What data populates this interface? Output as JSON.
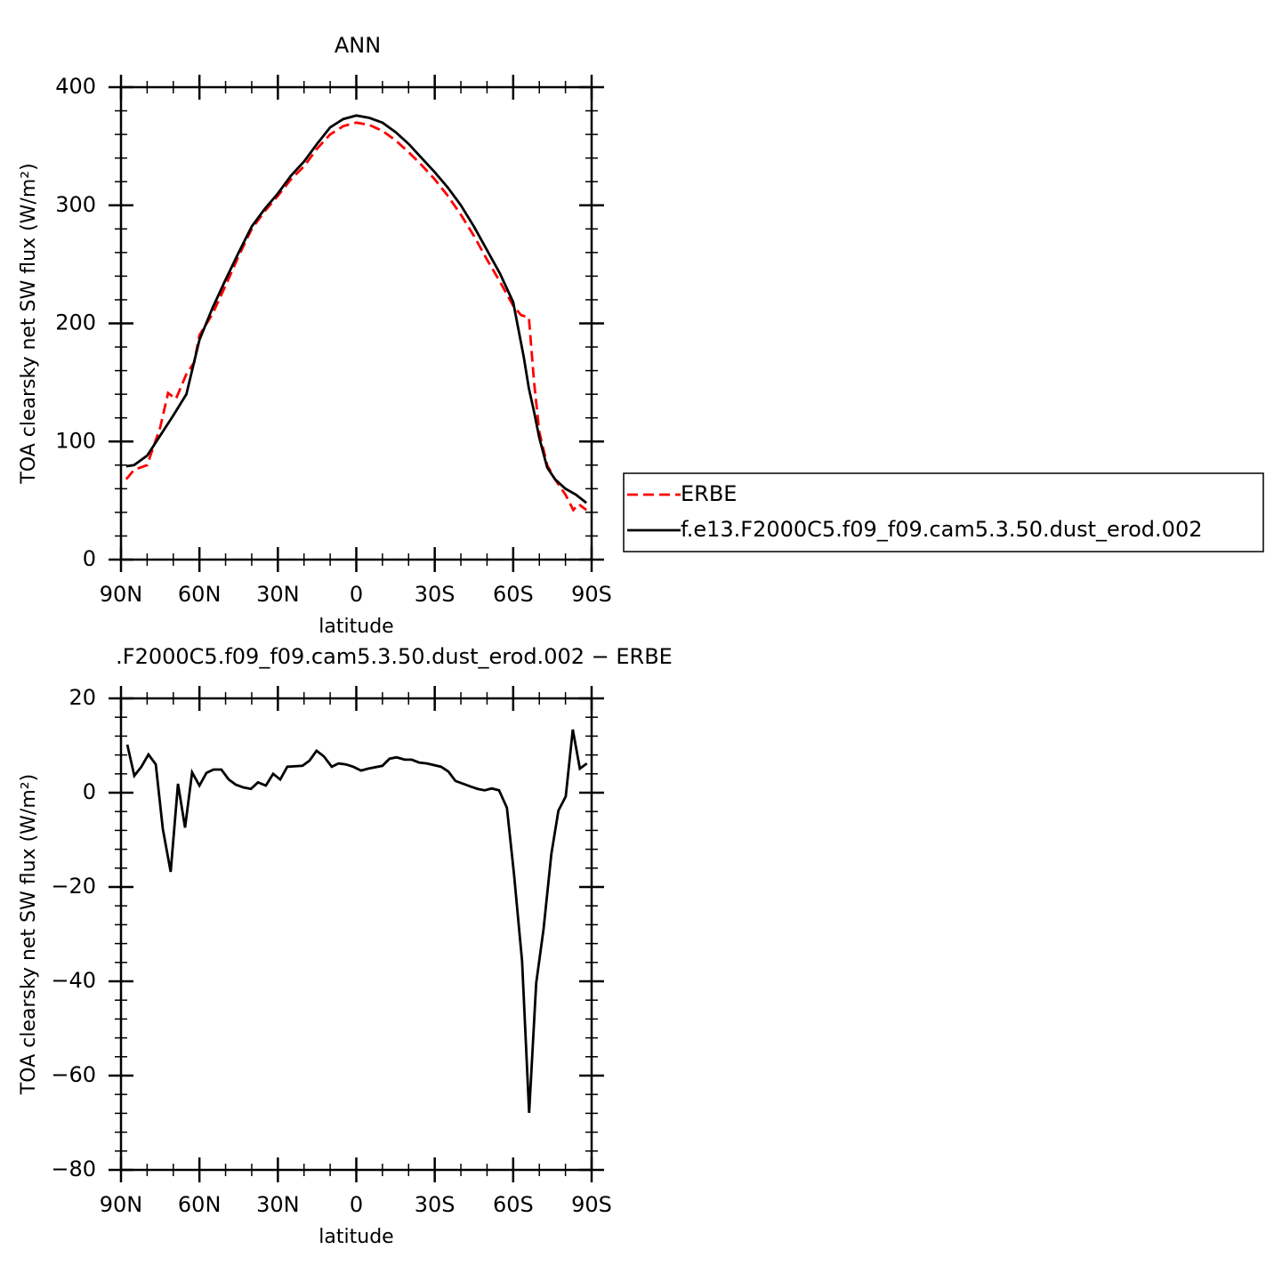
{
  "chart_data": [
    {
      "type": "line",
      "title": "ANN",
      "xlabel": "latitude",
      "ylabel": "TOA clearsky net SW flux (W/m²)",
      "xlim": [
        90,
        -90
      ],
      "ylim": [
        0,
        400
      ],
      "xticks": [
        {
          "value": 90,
          "label": "90N"
        },
        {
          "value": 60,
          "label": "60N"
        },
        {
          "value": 30,
          "label": "30N"
        },
        0,
        {
          "value": -30,
          "label": "30S"
        },
        {
          "value": -60,
          "label": "60S"
        },
        {
          "value": -90,
          "label": "90S"
        }
      ],
      "yticks": [
        0,
        100,
        200,
        300,
        400
      ],
      "legend": "right",
      "series": [
        {
          "name": "ERBE",
          "color": "#ff0000",
          "style": "dashed",
          "x": [
            88,
            85,
            80,
            75,
            72,
            69,
            65,
            62,
            60,
            55,
            50,
            45,
            40,
            35,
            30,
            25,
            20,
            15,
            10,
            5,
            0,
            -5,
            -10,
            -15,
            -20,
            -25,
            -30,
            -35,
            -40,
            -45,
            -50,
            -55,
            -60,
            -63,
            -66,
            -68,
            -70,
            -73,
            -76,
            -80,
            -83,
            -85,
            -88
          ],
          "values": [
            68,
            76,
            80,
            112,
            141,
            136,
            157,
            167,
            190,
            208,
            232,
            257,
            280,
            295,
            308,
            322,
            333,
            348,
            360,
            367,
            370,
            368,
            363,
            355,
            345,
            334,
            322,
            308,
            292,
            274,
            254,
            235,
            215,
            207,
            205,
            150,
            108,
            80,
            68,
            55,
            42,
            47,
            42
          ]
        },
        {
          "name": "f.e13.F2000C5.f09_f09.cam5.3.50.dust_erod.002",
          "color": "#000000",
          "style": "solid",
          "x": [
            88,
            85,
            80,
            75,
            70,
            65,
            60,
            55,
            50,
            45,
            40,
            35,
            30,
            25,
            20,
            15,
            10,
            5,
            0,
            -5,
            -10,
            -15,
            -20,
            -25,
            -30,
            -35,
            -40,
            -45,
            -50,
            -55,
            -60,
            -62,
            -64,
            -66,
            -68,
            -70,
            -73,
            -76,
            -80,
            -84,
            -88
          ],
          "values": [
            79,
            80,
            88,
            105,
            122,
            140,
            186,
            213,
            237,
            260,
            282,
            297,
            310,
            325,
            337,
            352,
            366,
            373,
            376,
            374,
            370,
            362,
            352,
            340,
            328,
            315,
            300,
            282,
            262,
            242,
            218,
            195,
            172,
            145,
            125,
            103,
            78,
            68,
            60,
            55,
            48
          ]
        }
      ]
    },
    {
      "type": "line",
      "title": ".F2000C5.f09_f09.cam5.3.50.dust_erod.002 − ERBE",
      "xlabel": "latitude",
      "ylabel": "TOA clearsky net SW flux (W/m²)",
      "xlim": [
        90,
        -90
      ],
      "ylim": [
        -80,
        20
      ],
      "xticks": [
        {
          "value": 90,
          "label": "90N"
        },
        {
          "value": 60,
          "label": "60N"
        },
        {
          "value": 30,
          "label": "30N"
        },
        0,
        {
          "value": -30,
          "label": "30S"
        },
        {
          "value": -60,
          "label": "60S"
        },
        {
          "value": -90,
          "label": "90S"
        }
      ],
      "yticks": [
        {
          "value": -80,
          "label": "−80"
        },
        {
          "value": -60,
          "label": "−60"
        },
        {
          "value": -40,
          "label": "−40"
        },
        {
          "value": -20,
          "label": "−20"
        },
        0,
        20
      ],
      "series": [
        {
          "color": "#000000",
          "style": "solid",
          "x": [
            87.6,
            84.9,
            82.2,
            79.5,
            76.7,
            74,
            71,
            68.2,
            65.5,
            62.8,
            60,
            57.3,
            54.6,
            51.6,
            48.8,
            46.1,
            43.1,
            40.3,
            37.6,
            34.6,
            31.8,
            29.1,
            26.4,
            20.6,
            17.9,
            15.2,
            12.4,
            9.4,
            6.8,
            4,
            1.2,
            -1.8,
            -4.5,
            -10,
            -12.7,
            -15.4,
            -18.5,
            -21.2,
            -24,
            -27,
            -32.4,
            -35.2,
            -37.9,
            -43.7,
            -46.4,
            -49.1,
            -51.8,
            -54.6,
            -57.6,
            -60.3,
            -63.4,
            -66.1,
            -68.8,
            -71.6,
            -74.6,
            -77.3,
            -80.1,
            -82.8,
            -85.5,
            -88.2
          ],
          "values": [
            10.2,
            3.6,
            5.5,
            8.1,
            6,
            -7.7,
            -16.8,
            1.9,
            -7.4,
            4.3,
            1.5,
            4.2,
            4.9,
            4.9,
            2.8,
            1.7,
            1.1,
            0.8,
            2.2,
            1.5,
            4,
            2.8,
            5.5,
            5.7,
            6.8,
            8.9,
            7.7,
            5.5,
            6.2,
            6,
            5.5,
            4.7,
            5.1,
            5.7,
            7.2,
            7.5,
            7,
            7,
            6.4,
            6.2,
            5.5,
            4.5,
            2.5,
            1.3,
            0.8,
            0.5,
            0.9,
            0.5,
            -3.2,
            -17.2,
            -35.7,
            -67.9,
            -40.4,
            -29,
            -13,
            -3.8,
            -0.8,
            13.4,
            5.1,
            6.2
          ]
        }
      ]
    }
  ]
}
